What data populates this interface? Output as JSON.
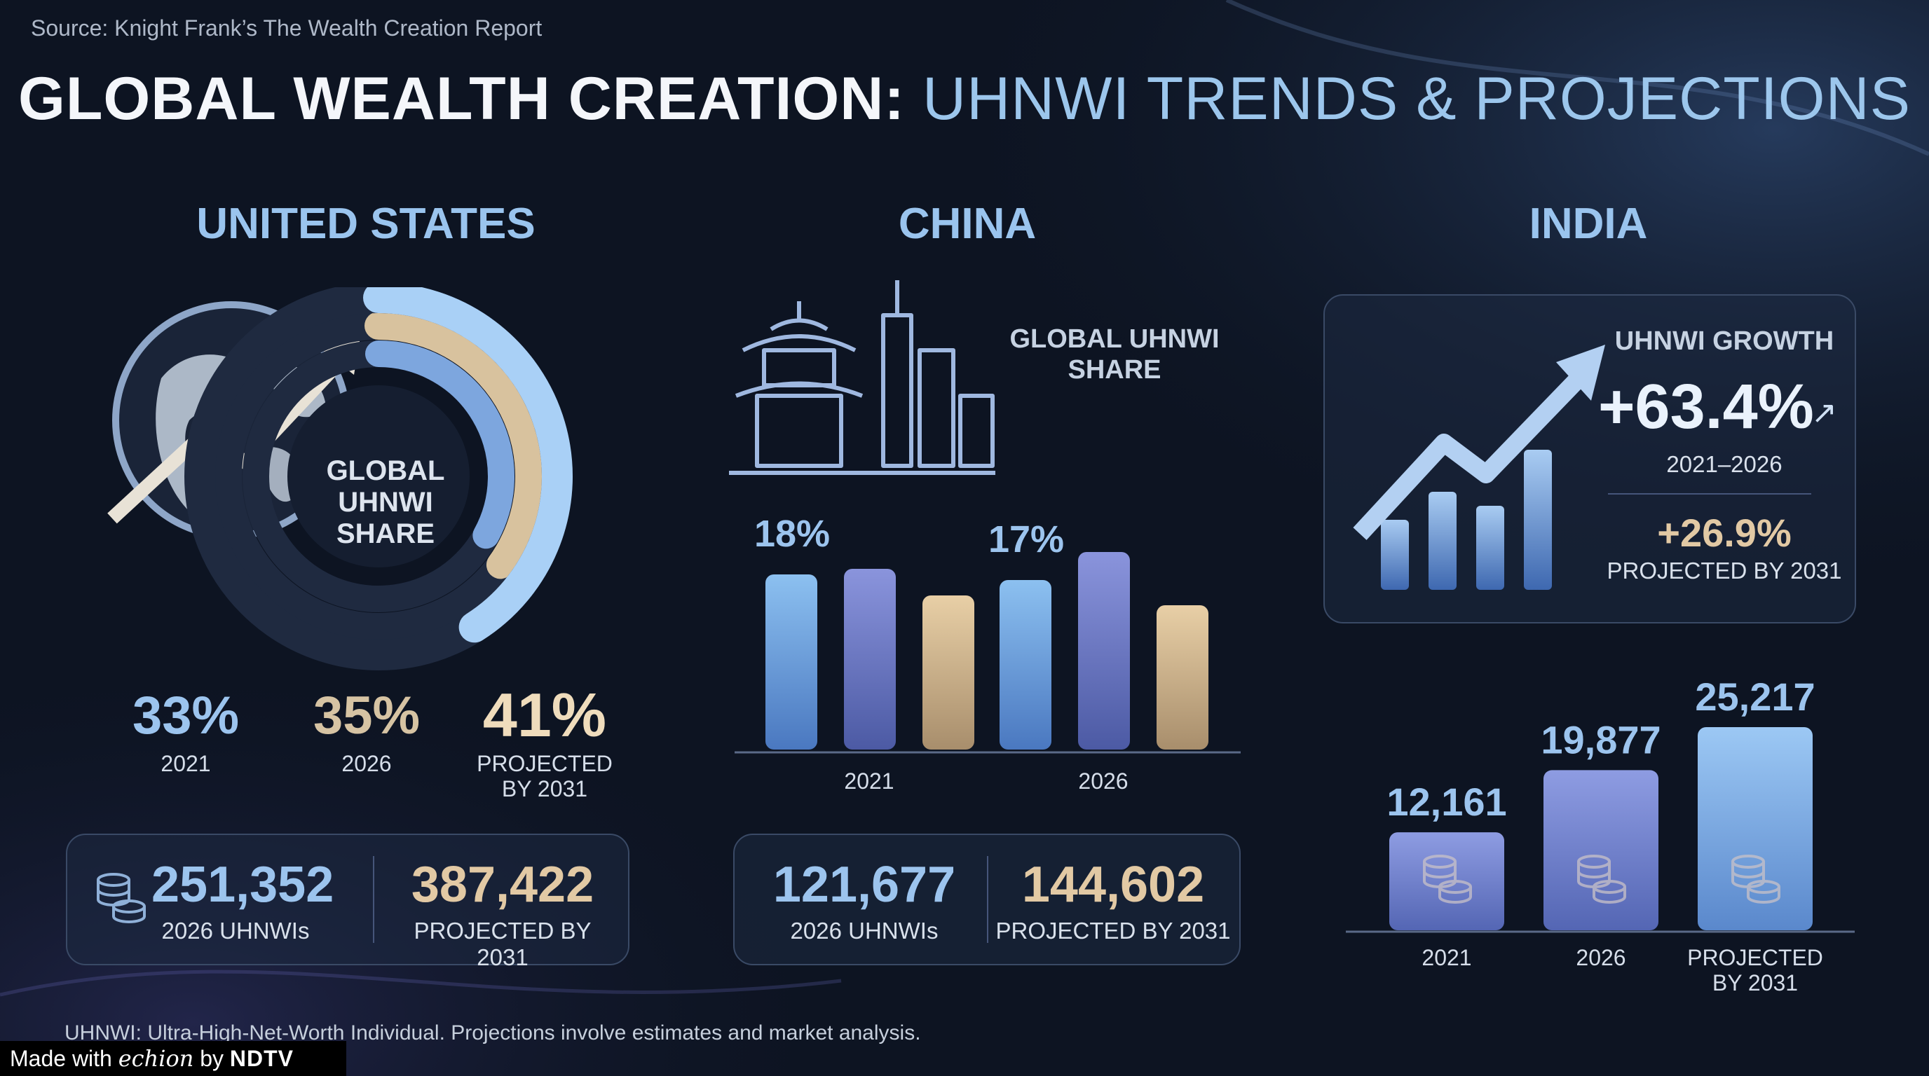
{
  "source": "Source: Knight Frank’s The Wealth Creation Report",
  "title": {
    "part1": "GLOBAL WEALTH CREATION:",
    "part2": "UHNWI TRENDS & PROJECTIONS"
  },
  "footnote": "UHNWI: Ultra-High-Net-Worth Individual. Projections involve estimates and market analysis.",
  "badge": {
    "prefix": "Made with",
    "brand": "echion",
    "by": "by",
    "org": "NDTV"
  },
  "colors": {
    "blue": "#9cc4ee",
    "gold": "#e2c9a4",
    "bg": "#0d1422"
  },
  "us": {
    "name": "UNITED STATES",
    "donut_label": [
      "GLOBAL",
      "UHNWI",
      "SHARE"
    ],
    "shares": [
      {
        "value": "33%",
        "label": "2021"
      },
      {
        "value": "35%",
        "label": "2026"
      },
      {
        "value": "41%",
        "label1": "PROJECTED",
        "label2": "BY 2031"
      }
    ],
    "stats": [
      {
        "value": "251,352",
        "label": "2026 UHNWIs"
      },
      {
        "value": "387,422",
        "label": "PROJECTED BY 2031"
      }
    ]
  },
  "china": {
    "name": "CHINA",
    "share_label": [
      "GLOBAL UHNWI",
      "SHARE"
    ],
    "bar_labels": [
      "18%",
      "17%"
    ],
    "group_labels": [
      "2021",
      "2026"
    ],
    "stats": [
      {
        "value": "121,677",
        "label": "2026 UHNWIs"
      },
      {
        "value": "144,602",
        "label": "PROJECTED BY 2031"
      }
    ]
  },
  "india": {
    "name": "INDIA",
    "growth_title": "UHNWI GROWTH",
    "growth_value": "+63.4%",
    "growth_period": "2021–2026",
    "proj_value": "+26.9%",
    "proj_label": "PROJECTED BY 2031",
    "bar_labels": [
      "12,161",
      "19,877",
      "25,217"
    ],
    "cat_labels": [
      "2021",
      "2026",
      "PROJECTED",
      "BY 2031"
    ]
  },
  "chart_data": [
    {
      "type": "pie",
      "title": "UNITED STATES GLOBAL UHNWI SHARE",
      "categories": [
        "2021",
        "2026",
        "PROJECTED BY 2031"
      ],
      "values": [
        33,
        35,
        41
      ],
      "unit": "%"
    },
    {
      "type": "bar",
      "title": "CHINA GLOBAL UHNWI SHARE",
      "categories": [
        "2021",
        "2026"
      ],
      "series": [
        {
          "name": "Global UHNWI share",
          "values": [
            18,
            17
          ]
        }
      ],
      "unit": "%"
    },
    {
      "type": "bar",
      "title": "INDIA UHNWIs",
      "categories": [
        "2021",
        "2026",
        "PROJECTED BY 2031"
      ],
      "values": [
        12161,
        19877,
        25217
      ],
      "ylim": [
        0,
        25217
      ]
    }
  ]
}
